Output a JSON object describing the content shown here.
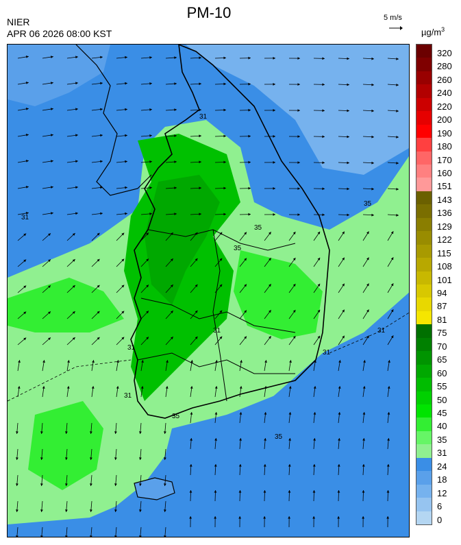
{
  "header": {
    "title": "PM-10",
    "agency": "NIER",
    "timestamp": "APR 06 2026 08:00 KST",
    "wind_scale": "5 m/s",
    "unit_base": "µg/m",
    "unit_exp": "3"
  },
  "legend": {
    "labels": [
      "320",
      "280",
      "260",
      "240",
      "220",
      "200",
      "190",
      "180",
      "170",
      "160",
      "151",
      "143",
      "136",
      "129",
      "122",
      "115",
      "108",
      "101",
      "94",
      "87",
      "81",
      "75",
      "70",
      "65",
      "60",
      "55",
      "50",
      "45",
      "40",
      "35",
      "31",
      "24",
      "18",
      "12",
      "6",
      "0"
    ],
    "colors": [
      "#6b0000",
      "#7f0000",
      "#990000",
      "#b20000",
      "#cc0000",
      "#e60000",
      "#ff0000",
      "#ff4040",
      "#ff6666",
      "#ff8080",
      "#ff9999",
      "#6b6000",
      "#7a6e00",
      "#8a7e00",
      "#998c00",
      "#a89a00",
      "#b8a800",
      "#c8b800",
      "#d8c800",
      "#e8d800",
      "#f5e600",
      "#007000",
      "#008000",
      "#009400",
      "#00a800",
      "#00bc00",
      "#00d000",
      "#00e400",
      "#33ee33",
      "#66f566",
      "#90f090",
      "#3a8ee6",
      "#5aa0ea",
      "#76b2ee",
      "#96c4f0",
      "#b4d6f2"
    ]
  },
  "map": {
    "colors": {
      "sea_deep": "#3a8ee6",
      "sea_light": "#76b2ee",
      "low": "#90f090",
      "mid": "#33ee33",
      "high": "#00c000",
      "higher": "#00a800",
      "boundary": "#000000"
    },
    "contour_labels": [
      "31",
      "31",
      "31",
      "35",
      "31",
      "35",
      "35",
      "31",
      "31",
      "35",
      "35",
      "31"
    ]
  }
}
